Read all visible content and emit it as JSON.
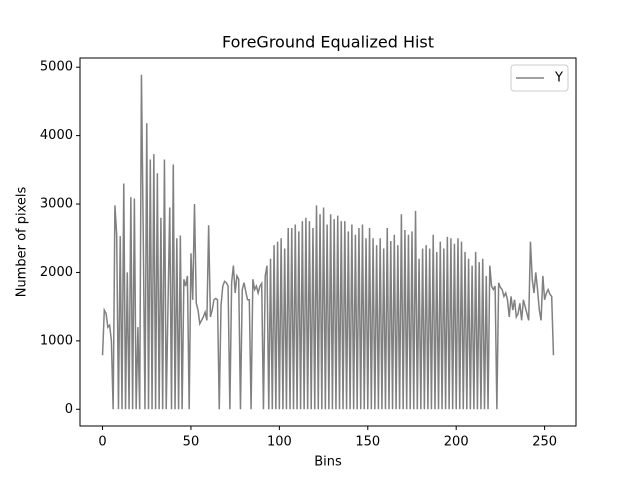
{
  "chart_data": {
    "type": "line",
    "title": "ForeGround Equalized Hist",
    "xlabel": "Bins",
    "ylabel": "Number of pixels",
    "x": [
      0,
      1,
      2,
      3,
      4,
      5,
      6,
      7,
      8,
      9,
      10,
      11,
      12,
      13,
      14,
      15,
      16,
      17,
      18,
      19,
      20,
      21,
      22,
      23,
      24,
      25,
      26,
      27,
      28,
      29,
      30,
      31,
      32,
      33,
      34,
      35,
      36,
      37,
      38,
      39,
      40,
      41,
      42,
      43,
      44,
      45,
      46,
      47,
      48,
      49,
      50,
      51,
      52,
      53,
      54,
      55,
      56,
      57,
      58,
      59,
      60,
      61,
      62,
      63,
      64,
      65,
      66,
      67,
      68,
      69,
      70,
      71,
      72,
      73,
      74,
      75,
      76,
      77,
      78,
      79,
      80,
      81,
      82,
      83,
      84,
      85,
      86,
      87,
      88,
      89,
      90,
      91,
      92,
      93,
      94,
      95,
      96,
      97,
      98,
      99,
      100,
      101,
      102,
      103,
      104,
      105,
      106,
      107,
      108,
      109,
      110,
      111,
      112,
      113,
      114,
      115,
      116,
      117,
      118,
      119,
      120,
      121,
      122,
      123,
      124,
      125,
      126,
      127,
      128,
      129,
      130,
      131,
      132,
      133,
      134,
      135,
      136,
      137,
      138,
      139,
      140,
      141,
      142,
      143,
      144,
      145,
      146,
      147,
      148,
      149,
      150,
      151,
      152,
      153,
      154,
      155,
      156,
      157,
      158,
      159,
      160,
      161,
      162,
      163,
      164,
      165,
      166,
      167,
      168,
      169,
      170,
      171,
      172,
      173,
      174,
      175,
      176,
      177,
      178,
      179,
      180,
      181,
      182,
      183,
      184,
      185,
      186,
      187,
      188,
      189,
      190,
      191,
      192,
      193,
      194,
      195,
      196,
      197,
      198,
      199,
      200,
      201,
      202,
      203,
      204,
      205,
      206,
      207,
      208,
      209,
      210,
      211,
      212,
      213,
      214,
      215,
      216,
      217,
      218,
      219,
      220,
      221,
      222,
      223,
      224,
      225,
      226,
      227,
      228,
      229,
      230,
      231,
      232,
      233,
      234,
      235,
      236,
      237,
      238,
      239,
      240,
      241,
      242,
      243,
      244,
      245,
      246,
      247,
      248,
      249,
      250,
      251,
      252,
      253,
      254,
      255
    ],
    "series": [
      {
        "name": "Y",
        "color": "#808080",
        "values": [
          790,
          1450,
          1400,
          1200,
          1230,
          1000,
          0,
          2980,
          2550,
          0,
          2530,
          0,
          3300,
          0,
          2000,
          0,
          3100,
          0,
          3080,
          0,
          1200,
          0,
          4890,
          2600,
          0,
          4180,
          0,
          3650,
          0,
          3730,
          0,
          3450,
          0,
          2800,
          0,
          3650,
          0,
          1500,
          2950,
          0,
          3580,
          0,
          2500,
          0,
          2540,
          0,
          1900,
          1800,
          1950,
          0,
          2280,
          1600,
          3000,
          1550,
          1450,
          1250,
          1300,
          1350,
          1420,
          1300,
          2690,
          1350,
          1450,
          1600,
          1620,
          1600,
          0,
          1520,
          1800,
          1870,
          1850,
          1800,
          0,
          1850,
          2100,
          1700,
          1950,
          1900,
          0,
          1750,
          1850,
          1720,
          1600,
          1600,
          0,
          1900,
          1750,
          1800,
          1700,
          1800,
          1840,
          0,
          1950,
          2100,
          0,
          2200,
          0,
          2400,
          0,
          2450,
          0,
          2500,
          0,
          2350,
          0,
          2650,
          0,
          2650,
          0,
          2700,
          0,
          2600,
          0,
          2750,
          0,
          2800,
          0,
          2750,
          0,
          2650,
          0,
          2980,
          0,
          2850,
          0,
          2950,
          0,
          2700,
          0,
          2850,
          0,
          2780,
          0,
          2830,
          0,
          2750,
          0,
          2750,
          0,
          2600,
          0,
          2700,
          0,
          2550,
          0,
          2650,
          0,
          2700,
          0,
          2500,
          0,
          2650,
          0,
          2500,
          0,
          2400,
          0,
          2500,
          0,
          2350,
          0,
          2650,
          0,
          2460,
          0,
          2550,
          0,
          2400,
          0,
          2850,
          0,
          2620,
          0,
          2550,
          0,
          2600,
          0,
          2900,
          0,
          2200,
          0,
          2350,
          0,
          2400,
          0,
          2350,
          0,
          2550,
          0,
          2300,
          0,
          2450,
          0,
          2350,
          0,
          2520,
          0,
          2500,
          0,
          2420,
          0,
          2500,
          0,
          2450,
          0,
          2300,
          0,
          2200,
          0,
          2100,
          0,
          2300,
          0,
          2150,
          0,
          2200,
          0,
          1950,
          0,
          2100,
          1800,
          1750,
          1800,
          0,
          1850,
          1780,
          1750,
          1650,
          1700,
          1600,
          1350,
          1650,
          1450,
          1600,
          1350,
          1400,
          1550,
          1300,
          1600,
          1500,
          1400,
          1300,
          2450,
          1900,
          1700,
          2000,
          1750,
          1450,
          1300,
          1950,
          1600,
          1700,
          1750,
          1680,
          1650,
          790
        ]
      }
    ],
    "xlim": [
      -12.75,
      267.75
    ],
    "ylim": [
      -244.5,
      5134.5
    ],
    "xticks": [
      0,
      50,
      100,
      150,
      200,
      250
    ],
    "yticks": [
      0,
      1000,
      2000,
      3000,
      4000,
      5000
    ],
    "legend": "upper right"
  }
}
